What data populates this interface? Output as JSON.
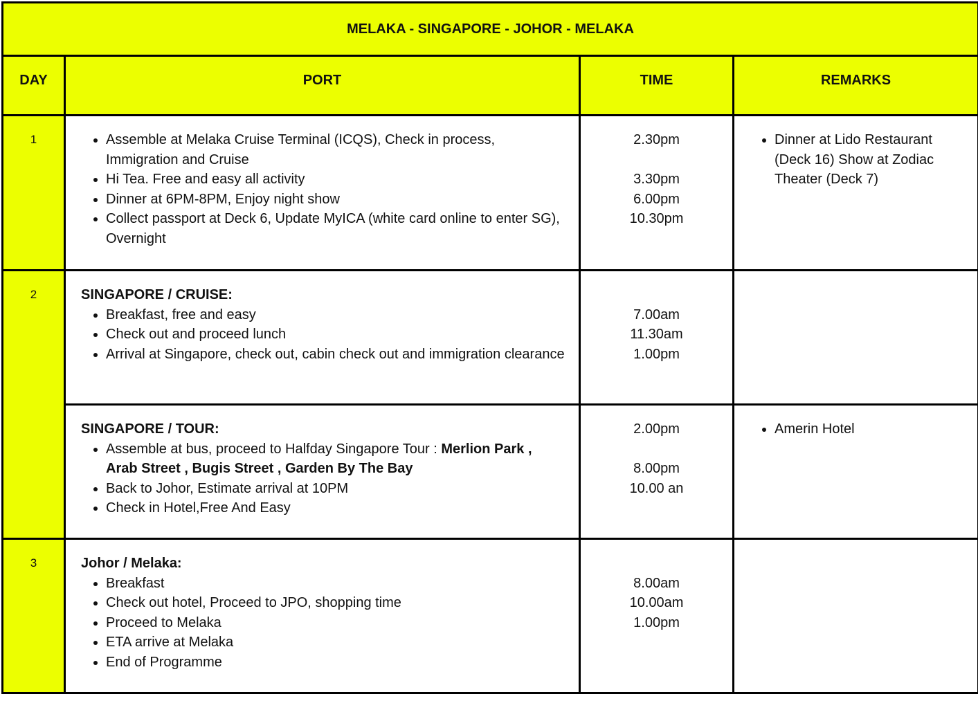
{
  "title": "MELAKA - SINGAPORE - JOHOR - MELAKA",
  "colors": {
    "header_bg": "#ecff00",
    "border": "#000000"
  },
  "headers": {
    "day": "DAY",
    "port": "PORT",
    "time": "TIME",
    "remarks": "REMARKS"
  },
  "rows": [
    {
      "day": "1",
      "heading": "",
      "items": [
        [
          {
            "text": "Assemble at Melaka Cruise Terminal (ICQS), Check in process, Immigration and Cruise"
          }
        ],
        [
          {
            "text": "Hi Tea. Free and easy all activity"
          }
        ],
        [
          {
            "text": "Dinner at 6PM-8PM, Enjoy night show"
          }
        ],
        [
          {
            "text": "Collect passport at Deck 6, Update MyICA (white card online to enter SG), Overnight"
          }
        ]
      ],
      "times": [
        "2.30pm",
        "",
        "3.30pm",
        "6.00pm",
        "10.30pm"
      ],
      "remarks": [
        "Dinner at Lido Restaurant (Deck 16) Show at Zodiac Theater (Deck 7)"
      ]
    },
    {
      "day": "2",
      "heading": "SINGAPORE / CRUISE:",
      "items": [
        [
          {
            "text": "Breakfast, free and easy"
          }
        ],
        [
          {
            "text": "Check out and proceed lunch"
          }
        ],
        [
          {
            "text": "Arrival at Singapore, check out, cabin check out and immigration clearance"
          }
        ]
      ],
      "times": [
        "",
        "7.00am",
        "11.30am",
        "1.00pm"
      ],
      "remarks": []
    },
    {
      "day": "",
      "heading": "SINGAPORE / TOUR:",
      "items": [
        [
          {
            "text": "Assemble at bus, proceed to Halfday Singapore Tour : "
          },
          {
            "text": "Merlion Park , Arab Street , Bugis Street , Garden By The Bay",
            "bold": true
          }
        ],
        [
          {
            "text": "Back to Johor, Estimate arrival at 10PM"
          }
        ],
        [
          {
            "text": "Check in Hotel,Free And Easy"
          }
        ]
      ],
      "times": [
        "2.00pm",
        "",
        "8.00pm",
        "10.00 an"
      ],
      "remarks": [
        "Amerin Hotel"
      ]
    },
    {
      "day": "3",
      "heading": "Johor / Melaka:",
      "items": [
        [
          {
            "text": "Breakfast"
          }
        ],
        [
          {
            "text": "Check out hotel, Proceed to JPO, shopping time"
          }
        ],
        [
          {
            "text": "Proceed to Melaka"
          }
        ],
        [
          {
            "text": "ETA arrive at Melaka"
          }
        ],
        [
          {
            "text": "End of Programme"
          }
        ]
      ],
      "times": [
        "",
        "8.00am",
        "10.00am",
        "1.00pm"
      ],
      "remarks": []
    }
  ]
}
